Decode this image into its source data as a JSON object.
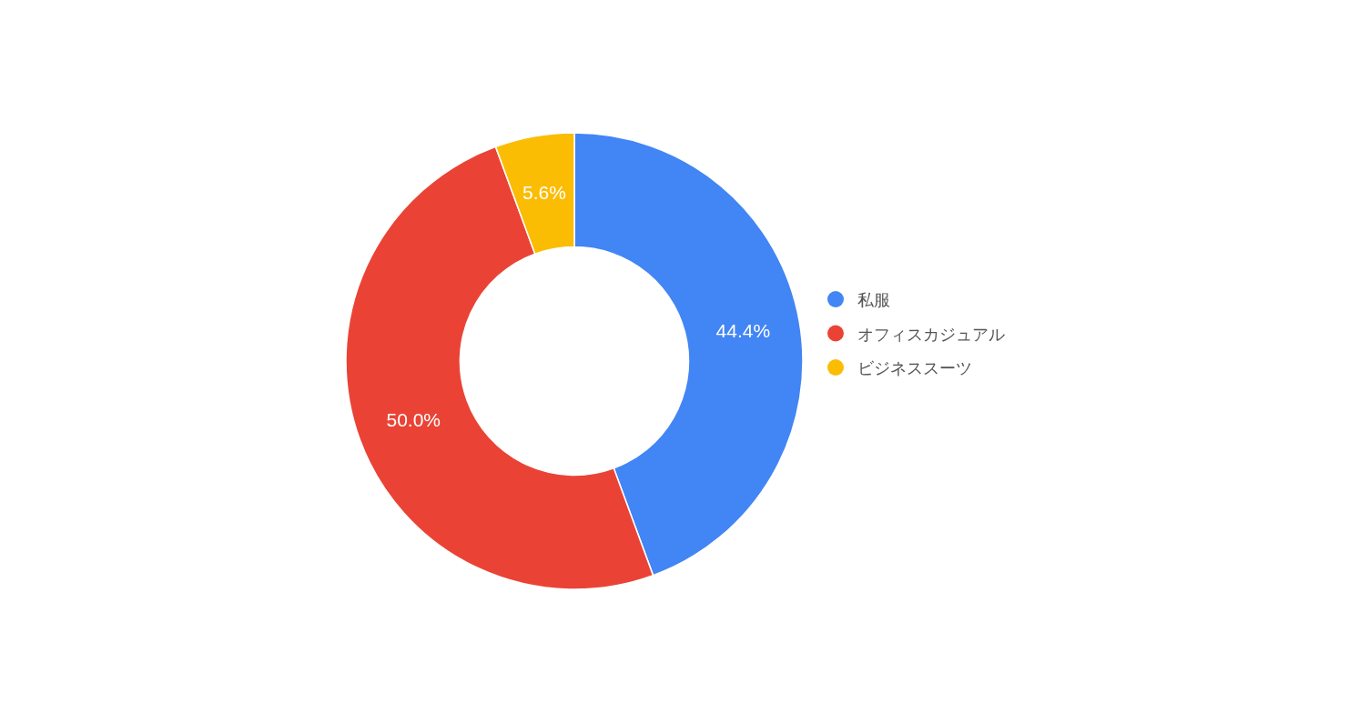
{
  "chart_data": {
    "type": "donut",
    "categories": [
      "私服",
      "オフィスカジュアル",
      "ビジネススーツ"
    ],
    "values": [
      44.4,
      50.0,
      5.6
    ],
    "colors": [
      "#4285f4",
      "#ea4335",
      "#fbbc04"
    ],
    "value_labels": [
      "44.4%",
      "50.0%",
      "5.6%"
    ],
    "legend": "right"
  }
}
